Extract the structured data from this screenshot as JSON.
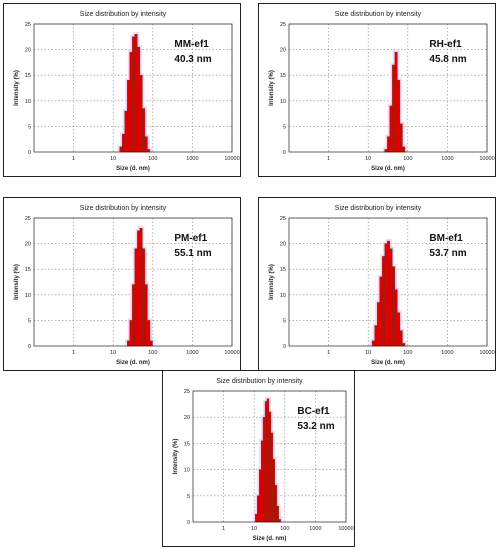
{
  "charts": [
    {
      "id": "mm",
      "title": "Size distribution by intensity",
      "name": "MM-ef1",
      "value_label": "40.3 nm",
      "xlabel": "Size (d. nm)",
      "ylabel": "Intensity (%)"
    },
    {
      "id": "rh",
      "title": "Size distribution by intensity",
      "name": "RH-ef1",
      "value_label": "45.8 nm",
      "xlabel": "Size (d. nm)",
      "ylabel": "Intensity (%)"
    },
    {
      "id": "pm",
      "title": "Size distribution by intensity",
      "name": "PM-ef1",
      "value_label": "55.1 nm",
      "xlabel": "Size (d. nm)",
      "ylabel": "Intensity (%)"
    },
    {
      "id": "bm",
      "title": "Size distribution by intensity",
      "name": "BM-ef1",
      "value_label": "53.7 nm",
      "xlabel": "Size (d. nm)",
      "ylabel": "Intensity (%)"
    },
    {
      "id": "bc",
      "title": "Size distribution by intensity",
      "name": "BC-ef1",
      "value_label": "53.2 nm",
      "xlabel": "Size (d. nm)",
      "ylabel": "Intensity (%)"
    }
  ],
  "chart_data": [
    {
      "type": "bar",
      "label": "MM-ef1",
      "x_scale": "log",
      "xlim": [
        0.1,
        10000
      ],
      "ylim": [
        0,
        25
      ],
      "xticks": [
        "1",
        "10",
        "100",
        "1000",
        "10000"
      ],
      "yticks": [
        "0",
        "5",
        "10",
        "15",
        "20",
        "25"
      ],
      "grid": true,
      "bar_color": "#e00000",
      "x": [
        15.7,
        18.2,
        21.0,
        24.4,
        28.2,
        32.7,
        37.8,
        43.8,
        50.7,
        58.8,
        68.1,
        78.8
      ],
      "values": [
        1.0,
        3.5,
        8.0,
        14.0,
        19.5,
        22.5,
        23.0,
        20.5,
        15.0,
        8.5,
        3.0,
        0.5
      ]
    },
    {
      "type": "bar",
      "label": "RH-ef1",
      "x_scale": "log",
      "xlim": [
        0.1,
        10000
      ],
      "ylim": [
        0,
        25
      ],
      "xticks": [
        "1",
        "10",
        "100",
        "1000",
        "10000"
      ],
      "yticks": [
        "0",
        "5",
        "10",
        "15",
        "20",
        "25"
      ],
      "grid": true,
      "bar_color": "#e00000",
      "x": [
        28.2,
        32.7,
        37.8,
        43.8,
        50.7,
        58.8,
        68.1,
        78.8
      ],
      "values": [
        0.5,
        3.0,
        9.0,
        17.0,
        19.5,
        14.0,
        5.5,
        1.0
      ]
    },
    {
      "type": "bar",
      "label": "PM-ef1",
      "x_scale": "log",
      "xlim": [
        0.1,
        10000
      ],
      "ylim": [
        0,
        25
      ],
      "xticks": [
        "1",
        "10",
        "100",
        "1000",
        "10000"
      ],
      "yticks": [
        "0",
        "5",
        "10",
        "15",
        "20",
        "25"
      ],
      "grid": true,
      "bar_color": "#e00000",
      "x": [
        24.4,
        28.2,
        32.7,
        37.8,
        43.8,
        50.7,
        58.8,
        68.1,
        78.8,
        91.3
      ],
      "values": [
        1.0,
        5.0,
        12.0,
        19.0,
        22.5,
        23.0,
        19.0,
        12.0,
        5.0,
        1.0
      ]
    },
    {
      "type": "bar",
      "label": "BM-ef1",
      "x_scale": "log",
      "xlim": [
        0.1,
        10000
      ],
      "ylim": [
        0,
        25
      ],
      "xticks": [
        "1",
        "10",
        "100",
        "1000",
        "10000"
      ],
      "yticks": [
        "0",
        "5",
        "10",
        "15",
        "20",
        "25"
      ],
      "grid": true,
      "bar_color": "#e00000",
      "x": [
        13.5,
        15.7,
        18.2,
        21.0,
        24.4,
        28.2,
        32.7,
        37.8,
        43.8,
        50.7,
        58.8,
        68.1,
        78.8
      ],
      "values": [
        1.0,
        4.0,
        8.5,
        13.5,
        17.5,
        20.0,
        20.5,
        19.0,
        15.5,
        11.0,
        6.5,
        3.0,
        0.5
      ]
    },
    {
      "type": "bar",
      "label": "BC-ef1",
      "x_scale": "log",
      "xlim": [
        0.1,
        10000
      ],
      "ylim": [
        0,
        25
      ],
      "xticks": [
        "1",
        "10",
        "100",
        "1000",
        "10000"
      ],
      "yticks": [
        "0",
        "5",
        "10",
        "15",
        "20",
        "25"
      ],
      "grid": true,
      "bar_color": "#e00000",
      "x": [
        11.7,
        13.5,
        15.7,
        18.2,
        21.0,
        24.4,
        28.2,
        32.7,
        37.8,
        43.8,
        50.7,
        58.8,
        68.1
      ],
      "values": [
        1.5,
        5.0,
        10.0,
        15.5,
        20.0,
        23.0,
        23.5,
        21.0,
        17.0,
        12.0,
        7.0,
        3.0,
        0.5
      ]
    }
  ]
}
